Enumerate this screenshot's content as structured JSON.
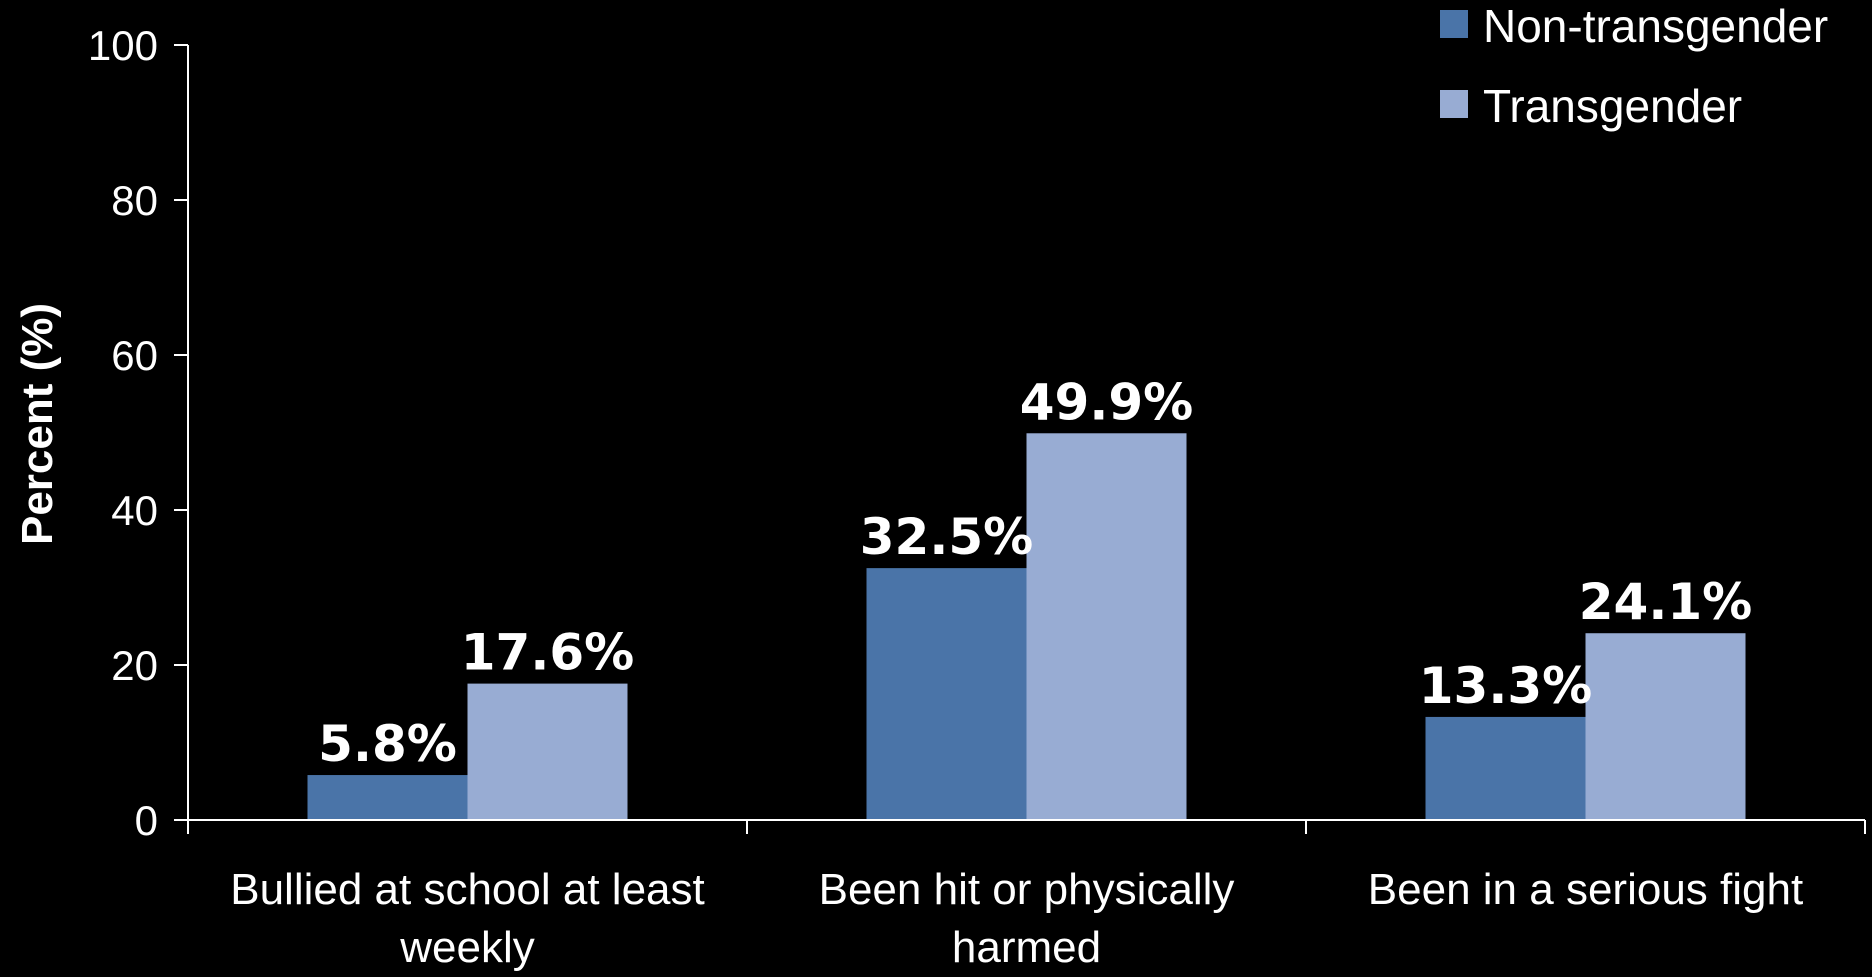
{
  "chart_data": {
    "type": "bar",
    "categories": [
      [
        "Bullied at school at least",
        "weekly"
      ],
      [
        "Been hit or physically",
        "harmed"
      ],
      [
        "Been in a serious fight"
      ]
    ],
    "series": [
      {
        "name": "Non-transgender",
        "color": "#4a74a8",
        "values": [
          5.8,
          32.5,
          13.3
        ]
      },
      {
        "name": "Transgender",
        "color": "#98acd3",
        "values": [
          17.6,
          49.9,
          24.1
        ]
      }
    ],
    "data_labels": [
      [
        "5.8%",
        "32.5%",
        "13.3%"
      ],
      [
        "17.6%",
        "49.9%",
        "24.1%"
      ]
    ],
    "ylabel": "Percent (%)",
    "ylim": [
      0,
      100
    ],
    "yticks": [
      "0",
      "20",
      "40",
      "60",
      "80",
      "100"
    ],
    "grid": false,
    "legend_position": "top-right"
  }
}
